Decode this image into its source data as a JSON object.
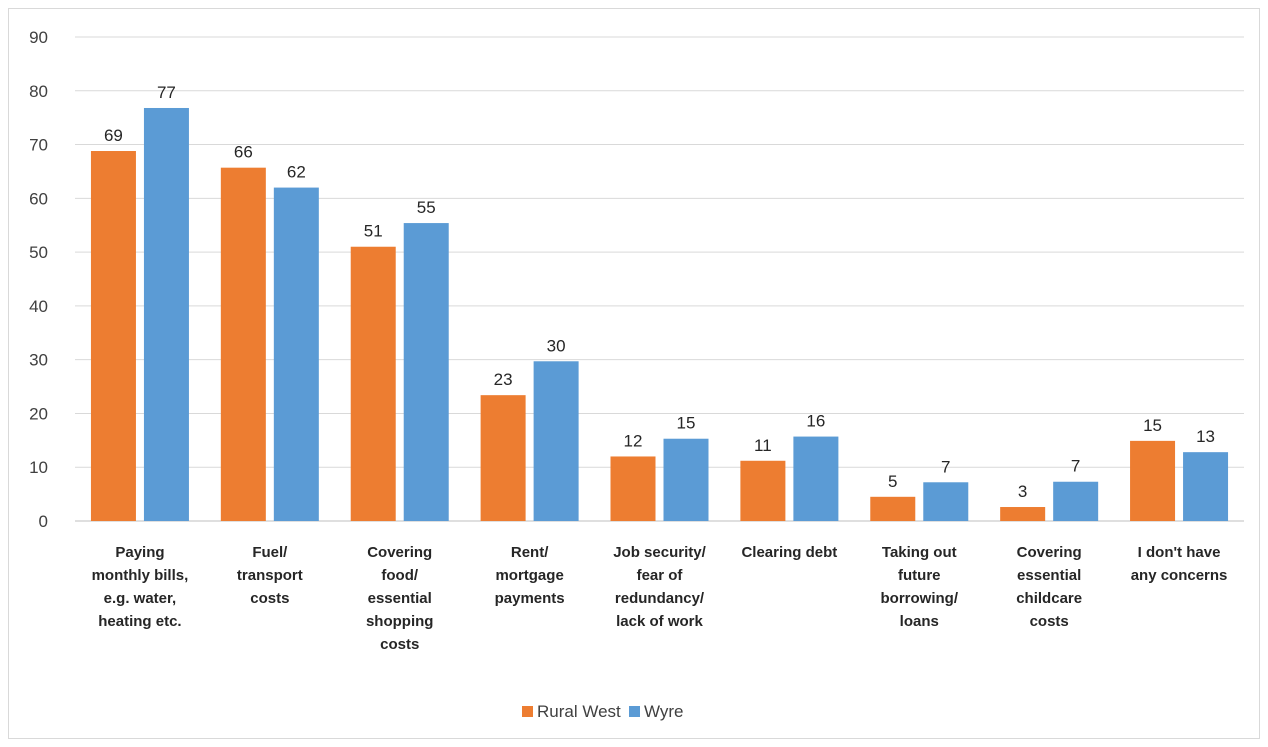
{
  "chart_data": {
    "type": "bar",
    "title": "",
    "xlabel": "",
    "ylabel": "",
    "ylim": [
      0,
      90
    ],
    "yticks": [
      0,
      10,
      20,
      30,
      40,
      50,
      60,
      70,
      80,
      90
    ],
    "grid": true,
    "legend": "bottom",
    "categories": [
      [
        "Paying",
        "monthly bills,",
        "e.g. water,",
        "heating etc."
      ],
      [
        "Fuel/",
        "transport",
        "costs"
      ],
      [
        "Covering",
        "food/",
        "essential",
        "shopping",
        "costs"
      ],
      [
        "Rent/",
        "mortgage",
        "payments"
      ],
      [
        "Job security/",
        "fear of",
        "redundancy/",
        "lack of work"
      ],
      [
        "Clearing debt"
      ],
      [
        "Taking out",
        "future",
        "borrowing/",
        "loans"
      ],
      [
        "Covering",
        "essential",
        "childcare",
        "costs"
      ],
      [
        "I don't have",
        "any concerns"
      ]
    ],
    "series": [
      {
        "name": "Rural West",
        "color": "#ED7D31",
        "values": [
          68.8,
          65.7,
          51.0,
          23.4,
          12.0,
          11.2,
          4.5,
          2.6,
          14.9
        ],
        "labels": [
          "69",
          "66",
          "51",
          "23",
          "12",
          "11",
          "5",
          "3",
          "15"
        ]
      },
      {
        "name": "Wyre",
        "color": "#5B9BD5",
        "values": [
          76.8,
          62.0,
          55.4,
          29.7,
          15.3,
          15.7,
          7.2,
          7.3,
          12.8
        ],
        "labels": [
          "77",
          "62",
          "55",
          "30",
          "15",
          "16",
          "7",
          "7",
          "13"
        ]
      }
    ]
  }
}
